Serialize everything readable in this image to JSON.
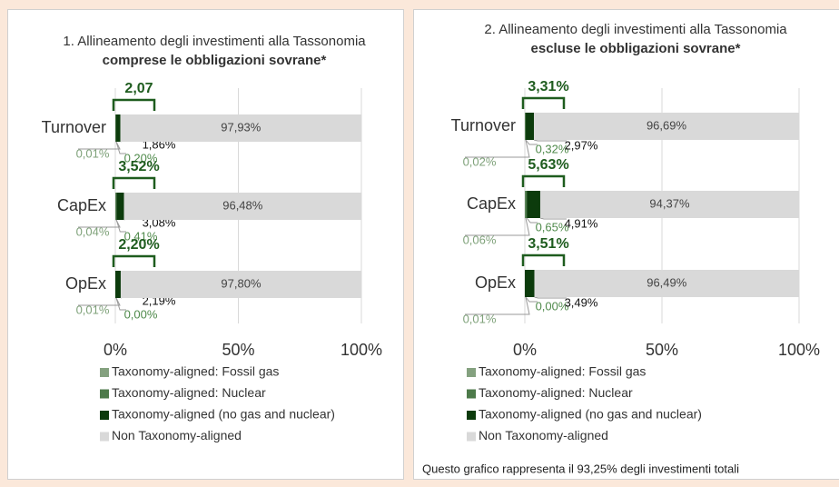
{
  "chart_data": [
    {
      "type": "stacked-bar",
      "title": "1. Allineamento degli investimenti alla Tassonomia",
      "title_emphasis": "comprese le obbligazioni sovrane*",
      "categories": [
        "Turnover",
        "CapEx",
        "OpEx"
      ],
      "series": [
        {
          "name": "Taxonomy-aligned: Fossil gas",
          "color": "#84a17f",
          "label_color": "#7fa27a",
          "values": [
            0.01,
            0.04,
            0.01
          ],
          "value_labels": [
            "0,01%",
            "0,04%",
            "0,01%"
          ]
        },
        {
          "name": "Taxonomy-aligned: Nuclear",
          "color": "#4d7a4a",
          "label_color": "#4f8a4b",
          "values": [
            0.2,
            0.41,
            0.0
          ],
          "value_labels": [
            "0,20%",
            "0,41%",
            "0,00%"
          ]
        },
        {
          "name": "Taxonomy-aligned (no gas and nuclear)",
          "color": "#0c3b0c",
          "label_color": "#111111",
          "values": [
            1.86,
            3.08,
            2.19
          ],
          "value_labels": [
            "1,86%",
            "3,08%",
            "2,19%"
          ]
        },
        {
          "name": "Non Taxonomy-aligned",
          "color": "#d9d9d9",
          "label_color": "#444444",
          "values": [
            97.93,
            96.48,
            97.8
          ],
          "value_labels": [
            "97,93%",
            "96,48%",
            "97,80%"
          ]
        }
      ],
      "annotations": [
        "2,07",
        "3,52%",
        "2,20%"
      ],
      "xlim": [
        0,
        100
      ],
      "xticks": [
        {
          "value": 0,
          "label": "0%"
        },
        {
          "value": 50,
          "label": "50%"
        },
        {
          "value": 100,
          "label": "100%"
        }
      ],
      "grid": true
    },
    {
      "type": "stacked-bar",
      "title": "2. Allineamento degli investimenti alla Tassonomia",
      "title_emphasis": "escluse le obbligazioni sovrane*",
      "categories": [
        "Turnover",
        "CapEx",
        "OpEx"
      ],
      "series": [
        {
          "name": "Taxonomy-aligned: Fossil gas",
          "color": "#84a17f",
          "label_color": "#7fa27a",
          "values": [
            0.02,
            0.06,
            0.01
          ],
          "value_labels": [
            "0,02%",
            "0,06%",
            "0,01%"
          ]
        },
        {
          "name": "Taxonomy-aligned: Nuclear",
          "color": "#4d7a4a",
          "label_color": "#4f8a4b",
          "values": [
            0.32,
            0.65,
            0.0
          ],
          "value_labels": [
            "0,32%",
            "0,65%",
            "0,00%"
          ]
        },
        {
          "name": "Taxonomy-aligned (no gas and nuclear)",
          "color": "#0c3b0c",
          "label_color": "#111111",
          "values": [
            2.97,
            4.91,
            3.49
          ],
          "value_labels": [
            "2,97%",
            "4,91%",
            "3,49%"
          ]
        },
        {
          "name": "Non Taxonomy-aligned",
          "color": "#d9d9d9",
          "label_color": "#444444",
          "values": [
            96.69,
            94.37,
            96.49
          ],
          "value_labels": [
            "96,69%",
            "94,37%",
            "96,49%"
          ]
        }
      ],
      "annotations": [
        "3,31%",
        "5,63%",
        "3,51%"
      ],
      "xlim": [
        0,
        100
      ],
      "xticks": [
        {
          "value": 0,
          "label": "0%"
        },
        {
          "value": 50,
          "label": "50%"
        },
        {
          "value": 100,
          "label": "100%"
        }
      ],
      "grid": true,
      "footnote": "Questo grafico rappresenta il 93,25% degli investimenti totali"
    }
  ]
}
